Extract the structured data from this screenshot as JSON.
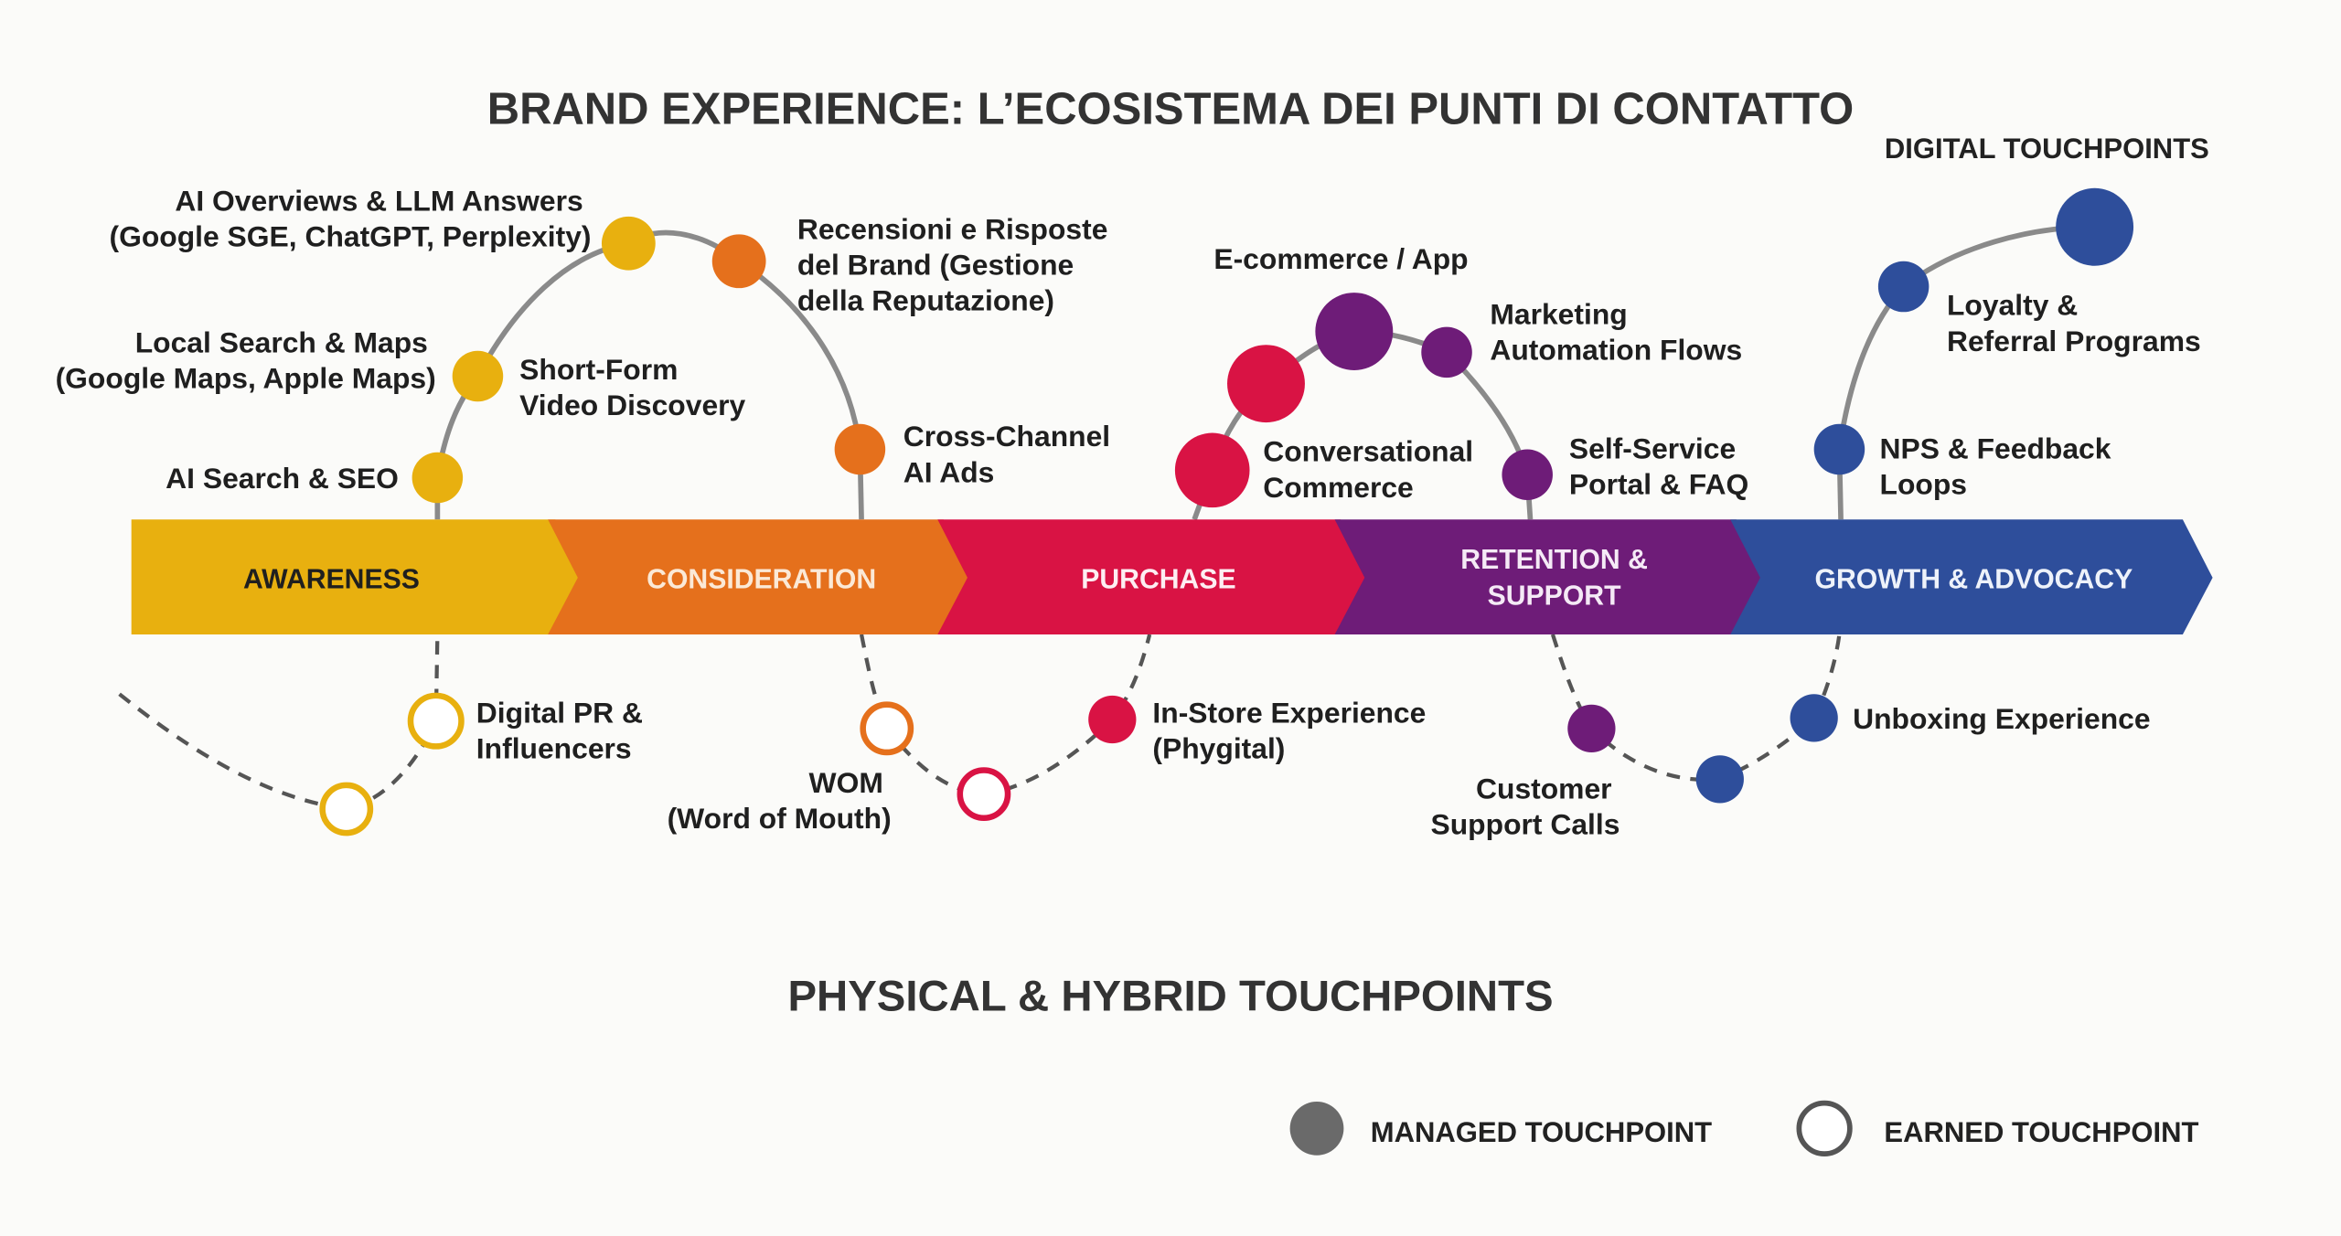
{
  "title": "BRAND EXPERIENCE: L’ECOSISTEMA DEI PUNTI DI CONTATTO",
  "digital_heading": "DIGITAL TOUCHPOINTS",
  "physical_heading": "PHYSICAL & HYBRID TOUCHPOINTS",
  "colors": {
    "awareness": "#E8B00F",
    "consideration": "#E5701C",
    "purchase": "#D91344",
    "retention": "#6E1C78",
    "growth": "#2E4E9B",
    "line": "#8a8a8a"
  },
  "stages": [
    {
      "lines": [
        "AWARENESS"
      ],
      "color": "#E8B00F"
    },
    {
      "lines": [
        "CONSIDERATION"
      ],
      "color": "#E5701C"
    },
    {
      "lines": [
        "PURCHASE"
      ],
      "color": "#D91344"
    },
    {
      "lines": [
        "RETENTION &",
        "SUPPORT"
      ],
      "color": "#6E1C78"
    },
    {
      "lines": [
        "GROWTH & ADVOCACY"
      ],
      "color": "#2E4E9B"
    }
  ],
  "digital_touchpoints": [
    {
      "lines": [
        "AI Search & SEO"
      ],
      "stage": "awareness",
      "type": "managed"
    },
    {
      "lines": [
        "Local Search & Maps",
        "(Google Maps, Apple Maps)"
      ],
      "stage": "awareness",
      "type": "managed"
    },
    {
      "lines": [
        "AI Overviews & LLM Answers",
        "(Google SGE, ChatGPT, Perplexity)"
      ],
      "stage": "awareness",
      "type": "managed"
    },
    {
      "lines": [
        "Short-Form",
        "Video Discovery"
      ],
      "stage": "consideration",
      "type": "managed"
    },
    {
      "lines": [
        "Recensioni e Risposte",
        "del Brand (Gestione",
        "della Reputazione)"
      ],
      "stage": "consideration",
      "type": "managed"
    },
    {
      "lines": [
        "Cross-Channel",
        "AI Ads"
      ],
      "stage": "consideration",
      "type": "managed"
    },
    {
      "lines": [
        "Conversational",
        "Commerce"
      ],
      "stage": "purchase",
      "type": "managed"
    },
    {
      "lines": [
        "E-commerce / App"
      ],
      "stage": "purchase",
      "type": "managed"
    },
    {
      "lines": [
        "Marketing",
        "Automation Flows"
      ],
      "stage": "retention",
      "type": "managed"
    },
    {
      "lines": [
        "Self-Service",
        "Portal & FAQ"
      ],
      "stage": "retention",
      "type": "managed"
    },
    {
      "lines": [
        "NPS & Feedback",
        "Loops"
      ],
      "stage": "growth",
      "type": "managed"
    },
    {
      "lines": [
        "Loyalty &",
        "Referral Programs"
      ],
      "stage": "growth",
      "type": "managed"
    }
  ],
  "physical_touchpoints": [
    {
      "lines": [
        "Digital PR &",
        "Influencers"
      ],
      "stage": "awareness",
      "type": "earned"
    },
    {
      "lines": [
        "WOM",
        "(Word of Mouth)"
      ],
      "stage": "consideration",
      "type": "earned"
    },
    {
      "lines": [
        "In-Store Experience",
        "(Phygital)"
      ],
      "stage": "purchase",
      "type": "managed"
    },
    {
      "lines": [
        "Customer",
        "Support Calls"
      ],
      "stage": "retention",
      "type": "managed"
    },
    {
      "lines": [
        "Unboxing Experience"
      ],
      "stage": "growth",
      "type": "managed"
    }
  ],
  "legend": {
    "managed": "MANAGED TOUCHPOINT",
    "earned": "EARNED TOUCHPOINT"
  }
}
